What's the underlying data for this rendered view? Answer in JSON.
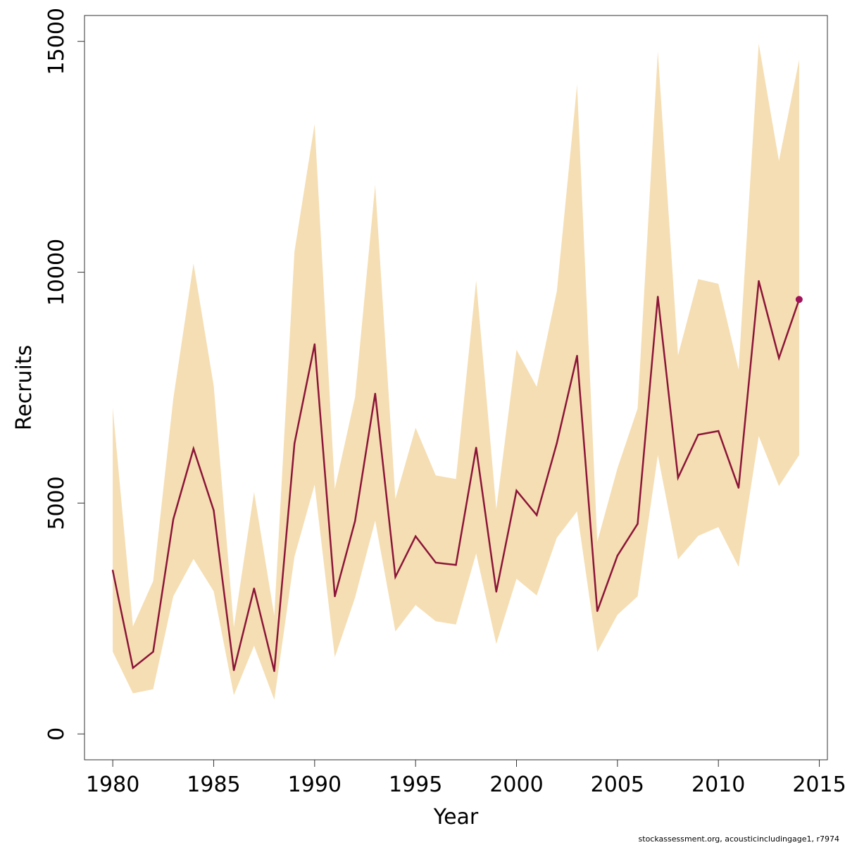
{
  "chart_data": {
    "type": "line",
    "title": "",
    "xlabel": "Year",
    "ylabel": "Recruits",
    "xlim": [
      1978.6,
      2015.4
    ],
    "ylim": [
      -560,
      15560
    ],
    "x_ticks": [
      1980,
      1985,
      1990,
      1995,
      2000,
      2005,
      2010,
      2015
    ],
    "y_ticks": [
      0,
      5000,
      10000,
      15000
    ],
    "grid": false,
    "legend": "none",
    "colors": {
      "line": "#8b1538",
      "band": "#f5deb3",
      "last_point": "#a0125a"
    },
    "series": [
      {
        "x": [
          1980,
          1981,
          1982,
          1983,
          1984,
          1985,
          1986,
          1987,
          1988,
          1989,
          1990,
          1991,
          1992,
          1993,
          1994,
          1995,
          1996,
          1997,
          1998,
          1999,
          2000,
          2001,
          2002,
          2003,
          2004,
          2005,
          2006,
          2007,
          2008,
          2009,
          2010,
          2011,
          2012,
          2013,
          2014
        ],
        "values": [
          3540,
          1430,
          1780,
          4650,
          6180,
          4840,
          1380,
          3150,
          1360,
          6290,
          8440,
          2980,
          4610,
          7370,
          3400,
          4280,
          3710,
          3660,
          6200,
          3080,
          5270,
          4740,
          6300,
          8190,
          2660,
          3860,
          4550,
          9470,
          5550,
          6480,
          6560,
          5330,
          9810,
          8140,
          9410
        ],
        "lower": [
          1780,
          880,
          970,
          2980,
          3790,
          3090,
          840,
          1910,
          740,
          3840,
          5400,
          1660,
          2950,
          4620,
          2220,
          2790,
          2440,
          2370,
          3910,
          1950,
          3360,
          3000,
          4250,
          4820,
          1770,
          2580,
          2980,
          6040,
          3780,
          4290,
          4480,
          3620,
          6450,
          5370,
          6040
        ],
        "upper": [
          7070,
          2330,
          3310,
          7260,
          10190,
          7540,
          2310,
          5240,
          2560,
          10450,
          13210,
          5310,
          7290,
          11890,
          5090,
          6630,
          5600,
          5520,
          9820,
          4870,
          8320,
          7520,
          9590,
          14060,
          4160,
          5750,
          7050,
          14780,
          8200,
          9850,
          9750,
          7890,
          14950,
          12410,
          14600
        ]
      }
    ]
  },
  "footer": "stockassessment.org, acousticincludingage1, r7974"
}
